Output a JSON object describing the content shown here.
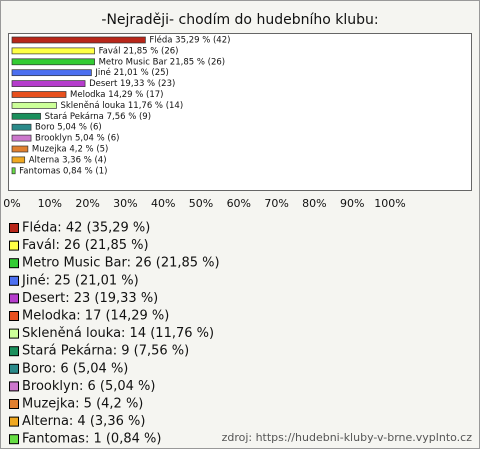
{
  "chart_data": {
    "type": "bar",
    "orientation": "horizontal",
    "title": "-Nejraději- chodím do hudebního klubu:",
    "categories": [
      "Fléda",
      "Favál",
      "Metro Music Bar",
      "Jiné",
      "Desert",
      "Melodka",
      "Skleněná louka",
      "Stará Pekárna",
      "Boro",
      "Brooklyn",
      "Muzejka",
      "Alterna",
      "Fantomas"
    ],
    "values": [
      35.29,
      21.85,
      21.85,
      21.01,
      19.33,
      14.29,
      11.76,
      7.56,
      5.04,
      5.04,
      4.2,
      3.36,
      0.84
    ],
    "value_labels": [
      "Fléda 35,29 % (42)",
      "Favál 21,85 % (26)",
      "Metro Music Bar 21,85 % (26)",
      "Jiné 21,01 % (25)",
      "Desert 19,33 % (23)",
      "Melodka 14,29 % (17)",
      "Skleněná louka 11,76 % (14)",
      "Stará Pekárna 7,56 % (9)",
      "Boro 5,04 % (6)",
      "Brooklyn 5,04 % (6)",
      "Muzejka 4,2 % (5)",
      "Alterna 3,36 % (4)",
      "Fantomas 0,84 % (1)"
    ],
    "colors": [
      "#b8261a",
      "#ffff44",
      "#33cc33",
      "#4c6ff0",
      "#b53ccc",
      "#e8501e",
      "#ccff99",
      "#1a8f5c",
      "#2a8a8a",
      "#cc77cc",
      "#e08030",
      "#f0a820",
      "#66dd44"
    ],
    "legend": [
      "Fléda: 42 (35,29 %)",
      "Favál: 26 (21,85 %)",
      "Metro Music Bar: 26 (21,85 %)",
      "Jiné: 25 (21,01 %)",
      "Desert: 23 (19,33 %)",
      "Melodka: 17 (14,29 %)",
      "Skleněná louka: 14 (11,76 %)",
      "Stará Pekárna: 9 (7,56 %)",
      "Boro: 6 (5,04 %)",
      "Brooklyn: 6 (5,04 %)",
      "Muzejka: 5 (4,2 %)",
      "Alterna: 4 (3,36 %)",
      "Fantomas: 1 (0,84 %)"
    ],
    "xlim": [
      0,
      100
    ],
    "xticks": [
      {
        "value": 0,
        "label": "0%"
      },
      {
        "value": 10,
        "label": "10%"
      },
      {
        "value": 20,
        "label": "20%"
      },
      {
        "value": 30,
        "label": "30%"
      },
      {
        "value": 40,
        "label": "40%"
      },
      {
        "value": 50,
        "label": "50%"
      },
      {
        "value": 60,
        "label": "60%"
      },
      {
        "value": 70,
        "label": "70%"
      },
      {
        "value": 80,
        "label": "80%"
      },
      {
        "value": 90,
        "label": "90%"
      },
      {
        "value": 100,
        "label": "100%"
      }
    ],
    "source": "zdroj: https://hudebni-kluby-v-brne.vyplnto.cz"
  }
}
